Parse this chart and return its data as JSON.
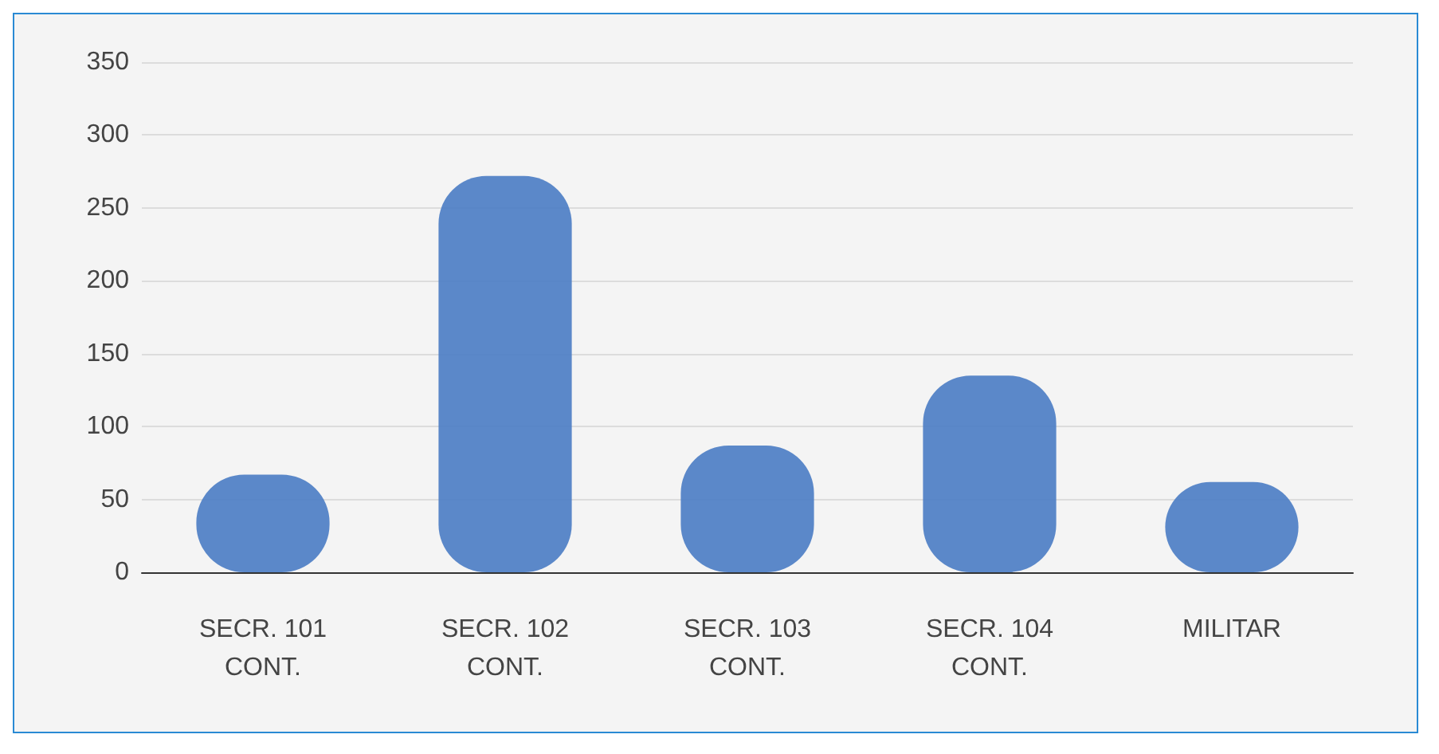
{
  "chart_data": {
    "type": "bar",
    "categories": [
      "SECR. 101\nCONT.",
      "SECR. 102\nCONT.",
      "SECR. 103\nCONT.",
      "SECR. 104\nCONT.",
      "MILITAR"
    ],
    "values": [
      67,
      272,
      87,
      135,
      62
    ],
    "color": "#4a7cc4",
    "ylim": [
      0,
      350
    ],
    "yticks": [
      0,
      50,
      100,
      150,
      200,
      250,
      300,
      350
    ],
    "grid": "y"
  }
}
